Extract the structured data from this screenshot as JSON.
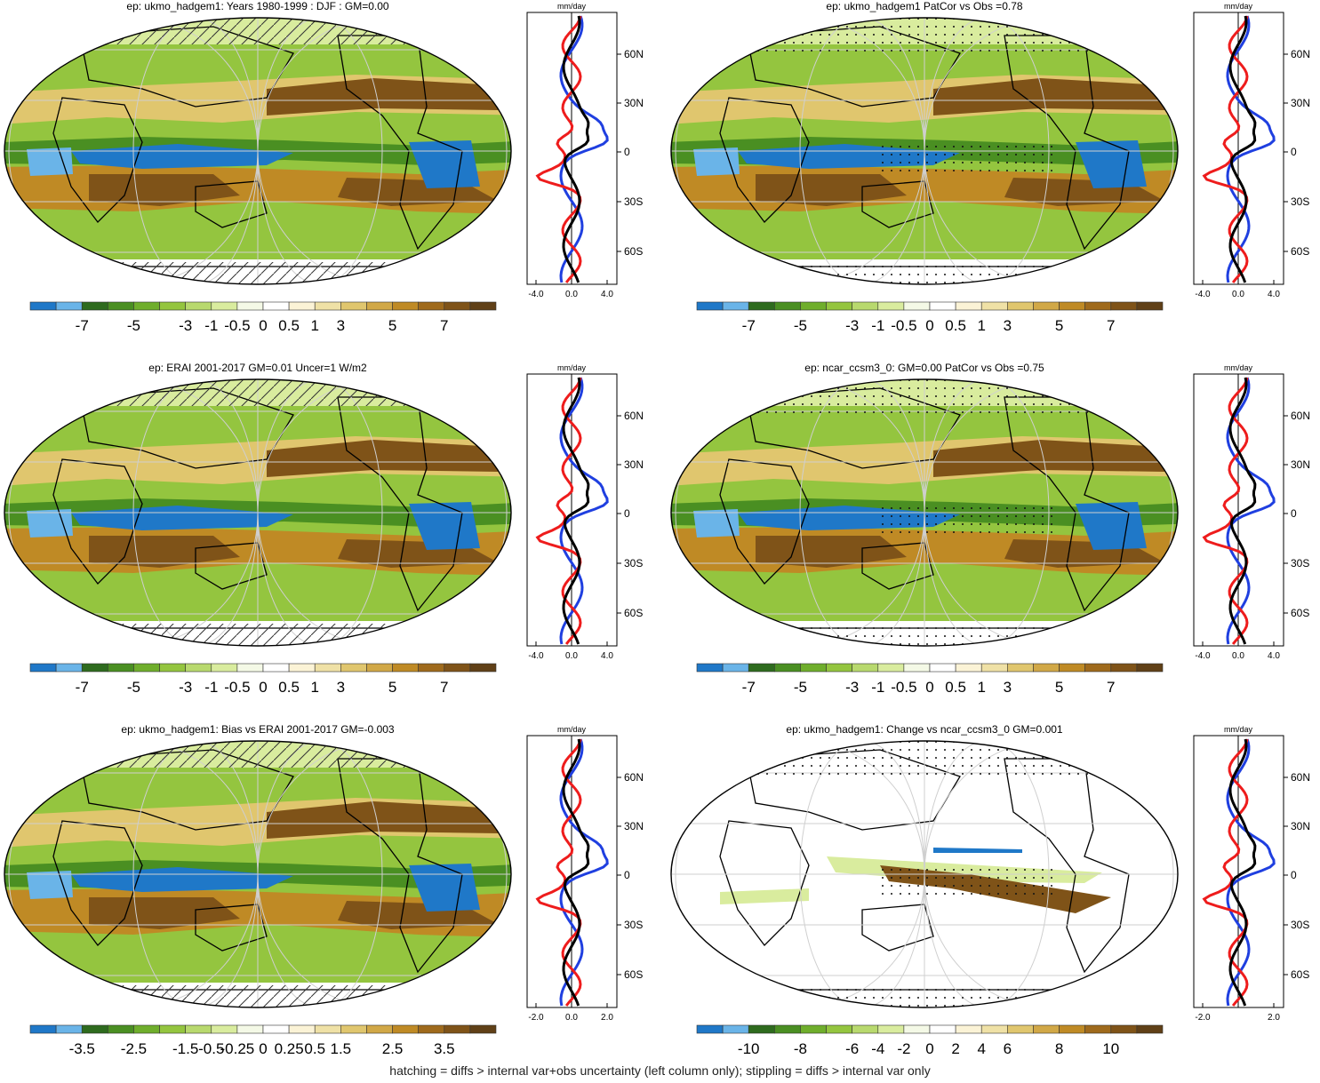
{
  "footer": "hatching = diffs > internal var+obs uncertainty (left column only); stippling = diffs > internal var only",
  "zonal_unit": "mm/day",
  "lat_labels": [
    "60N",
    "30N",
    "0",
    "30S",
    "60S"
  ],
  "palette": [
    "#1f78c8",
    "#6ab4e8",
    "#2e6b1e",
    "#4a8f22",
    "#6fae2c",
    "#94c53f",
    "#b8d96e",
    "#d9ec9e",
    "#f4f9e6",
    "#ffffff",
    "#fbf3d6",
    "#efe1a6",
    "#e0c66e",
    "#d1a847",
    "#bf8a25",
    "#9f6a1c",
    "#7f5318",
    "#604017"
  ],
  "panels": [
    {
      "title": "ep: ukmo_hadgem1: Years 1980-1999 : DJF : GM=0.00",
      "colorbar": [
        "-7",
        "-5",
        "-3",
        "-1",
        "-0.5",
        "0",
        "0.5",
        "1",
        "3",
        "5",
        "7"
      ],
      "zonal_ticks": [
        "-4.0",
        "0.0",
        "4.0"
      ],
      "hatch": true,
      "stipple": false
    },
    {
      "title": "ep: ukmo_hadgem1 PatCor vs Obs =0.78",
      "colorbar": [
        "-7",
        "-5",
        "-3",
        "-1",
        "-0.5",
        "0",
        "0.5",
        "1",
        "3",
        "5",
        "7"
      ],
      "zonal_ticks": [
        "-4.0",
        "0.0",
        "4.0"
      ],
      "hatch": false,
      "stipple": true
    },
    {
      "title": "ep: ERAI 2001-2017 GM=0.01 Uncer=1 W/m2",
      "colorbar": [
        "-7",
        "-5",
        "-3",
        "-1",
        "-0.5",
        "0",
        "0.5",
        "1",
        "3",
        "5",
        "7"
      ],
      "zonal_ticks": [
        "-4.0",
        "0.0",
        "4.0"
      ],
      "hatch": true,
      "stipple": false
    },
    {
      "title": "ep: ncar_ccsm3_0: GM=0.00 PatCor vs Obs =0.75",
      "colorbar": [
        "-7",
        "-5",
        "-3",
        "-1",
        "-0.5",
        "0",
        "0.5",
        "1",
        "3",
        "5",
        "7"
      ],
      "zonal_ticks": [
        "-4.0",
        "0.0",
        "4.0"
      ],
      "hatch": false,
      "stipple": true
    },
    {
      "title": "ep: ukmo_hadgem1: Bias vs ERAI 2001-2017 GM=-0.003",
      "colorbar": [
        "-3.5",
        "-2.5",
        "-1.5",
        "-0.5",
        "-0.25",
        "0",
        "0.25",
        "0.5",
        "1.5",
        "2.5",
        "3.5"
      ],
      "zonal_ticks": [
        "-2.0",
        "0.0",
        "2.0"
      ],
      "hatch": true,
      "stipple": false
    },
    {
      "title": "ep: ukmo_hadgem1: Change vs ncar_ccsm3_0 GM=0.001",
      "colorbar": [
        "-10",
        "-8",
        "-6",
        "-4",
        "-2",
        "0",
        "2",
        "4",
        "6",
        "8",
        "10"
      ],
      "zonal_ticks": [
        "-2.0",
        "2.0"
      ],
      "hatch": false,
      "stipple": true
    }
  ]
}
